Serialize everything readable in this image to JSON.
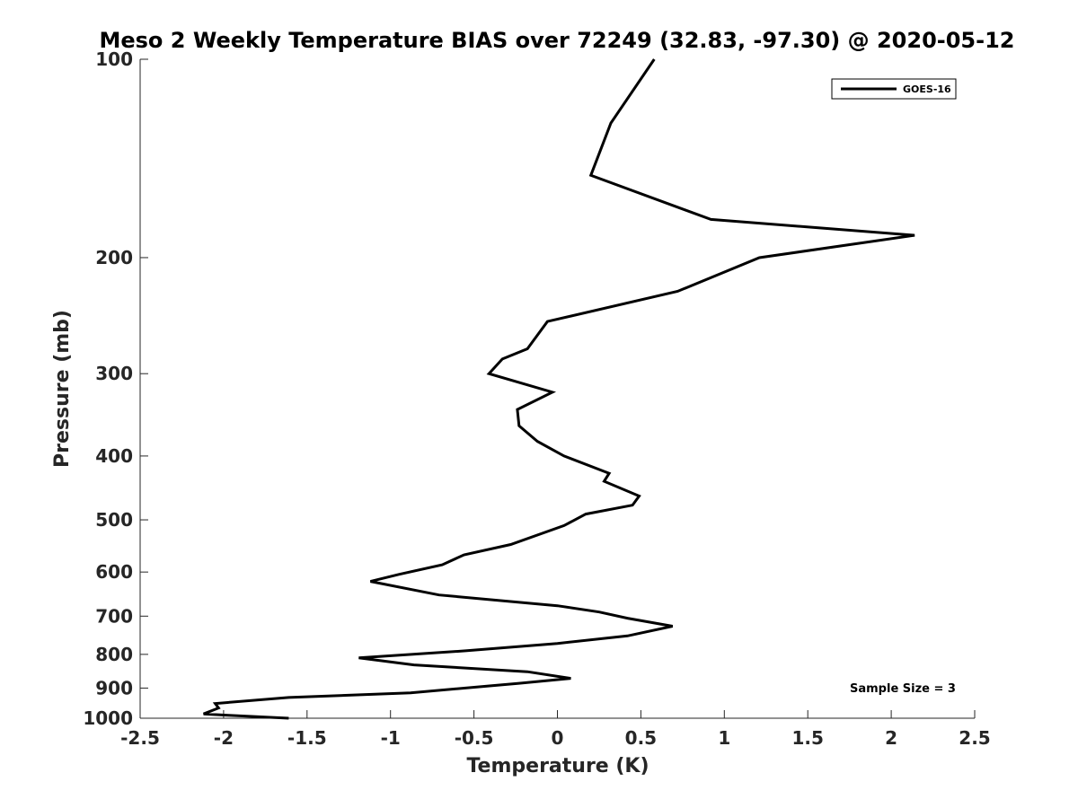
{
  "chart_data": {
    "type": "line",
    "title": "Meso 2 Weekly Temperature BIAS over 72249 (32.83, -97.30) @ 2020-05-12",
    "xlabel": "Temperature (K)",
    "ylabel": "Pressure (mb)",
    "xlim": [
      -2.5,
      2.5
    ],
    "ylim": [
      100,
      1000
    ],
    "yscale": "log",
    "yreversed": true,
    "grid": false,
    "xticks": [
      -2.5,
      -2,
      -1.5,
      -1,
      -0.5,
      0,
      0.5,
      1,
      1.5,
      2,
      2.5
    ],
    "xticklabels": [
      "-2.5",
      "-2",
      "-1.5",
      "-1",
      "-0.5",
      "0",
      "0.5",
      "1",
      "1.5",
      "2",
      "2.5"
    ],
    "yticks": [
      100,
      200,
      300,
      400,
      500,
      600,
      700,
      800,
      900,
      1000
    ],
    "yticklabels": [
      "100",
      "200",
      "300",
      "400",
      "500",
      "600",
      "700",
      "800",
      "900",
      "1000"
    ],
    "legend_position": "top-right",
    "annotation": "Sample Size = 3",
    "series": [
      {
        "name": "GOES-16",
        "color": "#000000",
        "x": [
          0.58,
          0.32,
          0.2,
          0.92,
          2.14,
          1.21,
          0.72,
          -0.06,
          -0.18,
          -0.33,
          -0.41,
          -0.03,
          -0.24,
          -0.23,
          -0.12,
          0.04,
          0.31,
          0.28,
          0.49,
          0.45,
          0.17,
          0.04,
          -0.28,
          -0.56,
          -0.69,
          -0.95,
          -1.12,
          -0.71,
          0.0,
          0.25,
          0.42,
          0.69,
          0.42,
          0.0,
          -0.55,
          -1.19,
          -0.86,
          -0.18,
          0.08,
          -0.23,
          -0.88,
          -1.61,
          -2.05,
          -2.03,
          -2.12,
          -1.97,
          -1.61
        ],
        "y": [
          100,
          125,
          150,
          175,
          185,
          200,
          225,
          250,
          275,
          285,
          300,
          320,
          340,
          360,
          380,
          400,
          425,
          437,
          460,
          475,
          490,
          510,
          545,
          565,
          585,
          605,
          620,
          650,
          675,
          690,
          705,
          725,
          750,
          770,
          790,
          810,
          830,
          850,
          870,
          885,
          915,
          930,
          950,
          965,
          985,
          990,
          1000
        ]
      }
    ]
  }
}
